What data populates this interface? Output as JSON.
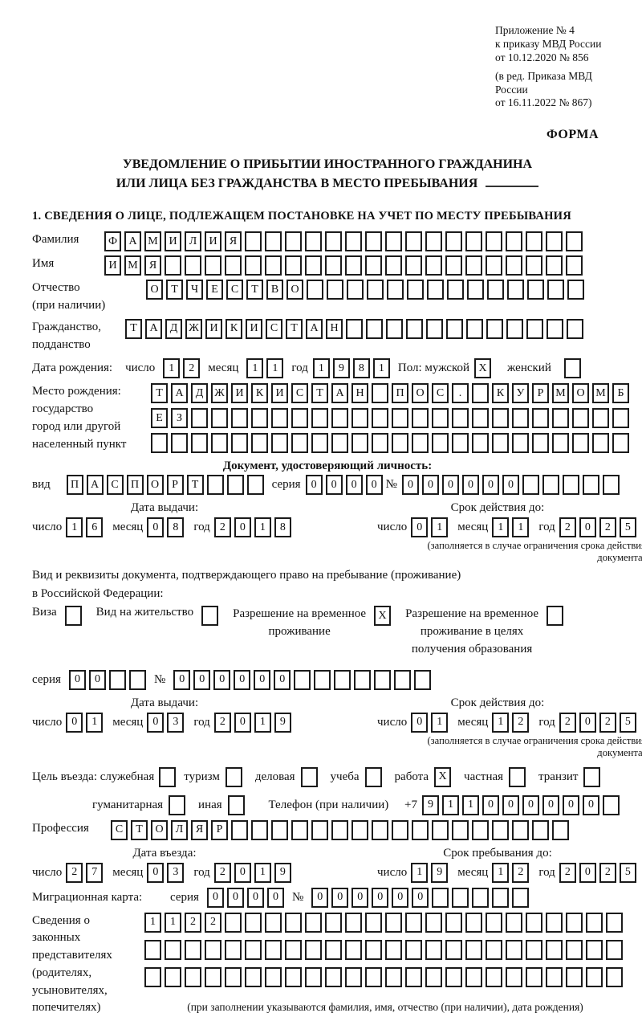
{
  "header": {
    "appendix": [
      "Приложение № 4",
      "к приказу МВД России",
      "от 10.12.2020 № 856"
    ],
    "revision": [
      "(в ред. Приказа МВД России",
      "от 16.11.2022 № 867)"
    ],
    "form_label": "ФОРМА"
  },
  "title": {
    "line1": "УВЕДОМЛЕНИЕ О ПРИБЫТИИ ИНОСТРАННОГО ГРАЖДАНИНА",
    "line2": "ИЛИ ЛИЦА БЕЗ ГРАЖДАНСТВА В МЕСТО ПРЕБЫВАНИЯ"
  },
  "section1_heading": "1. СВЕДЕНИЯ О ЛИЦЕ, ПОДЛЕЖАЩЕМ ПОСТАНОВКЕ НА УЧЕТ ПО МЕСТУ ПРЕБЫВАНИЯ",
  "labels": {
    "day": "число",
    "month": "месяц",
    "year": "год",
    "series": "серия",
    "number": "№",
    "kind": "вид",
    "sex": "Пол: мужской",
    "female": "женский",
    "phone": "Телефон (при наличии)",
    "phone_prefix": "+7"
  },
  "person": {
    "surname": {
      "label": "Фамилия",
      "boxes": {
        "chars": "ФАМИЛИЯ",
        "len": 24
      }
    },
    "firstname": {
      "label": "Имя",
      "boxes": {
        "chars": "ИМЯ",
        "len": 24
      }
    },
    "patronymic": {
      "label1": "Отчество",
      "label2": "(при наличии)",
      "boxes": {
        "chars": "ОТЧЕСТВО",
        "len": 22
      }
    },
    "citizenship": {
      "label1": "Гражданство,",
      "label2": "подданство",
      "boxes": {
        "chars": "ТАДЖИКИСТАН",
        "len": 23
      }
    },
    "birth_date": {
      "label": "Дата рождения:",
      "day": "12",
      "month": "11",
      "year": "1981"
    },
    "sex": {
      "male_mark": "X",
      "female_mark": ""
    },
    "birth_place": {
      "label1": "Место рождения:",
      "label2": "государство",
      "label3": "город или другой",
      "label4": "населенный пункт",
      "row1": {
        "chars": "ТАДЖИКИСТАН ПОС. КУРМОМБ",
        "len": 24
      },
      "row2": {
        "chars": "ЕЗ",
        "len": 24
      },
      "row3": {
        "chars": "",
        "len": 24
      }
    }
  },
  "id_document": {
    "heading": "Документ, удостоверяющий личность:",
    "kind_boxes": {
      "chars": "ПАСПОРТ",
      "len": 10
    },
    "series_boxes": {
      "chars": "0000",
      "len": 4
    },
    "number_boxes": {
      "chars": "000000",
      "len": 11
    },
    "issue": {
      "title": "Дата выдачи:",
      "day": "16",
      "month": "08",
      "year": "2018"
    },
    "expiry": {
      "title": "Срок действия до:",
      "day": "01",
      "month": "11",
      "year": "2025"
    },
    "expiry_note": "(заполняется в случае ограничения срока действия документа)"
  },
  "stay_document": {
    "intro1": "Вид и реквизиты документа, подтверждающего право на пребывание (проживание)",
    "intro2": "в Российской Федерации:",
    "visa": {
      "label": "Виза",
      "mark": ""
    },
    "residence": {
      "label": "Вид на жительство",
      "mark": ""
    },
    "temp_residence": {
      "line1": "Разрешение на временное",
      "line2": "проживание",
      "mark": "X"
    },
    "temp_residence_edu": {
      "line1": "Разрешение на временное",
      "line2": "проживание в целях",
      "line3": "получения образования",
      "mark": ""
    },
    "series_boxes": {
      "chars": "00",
      "len": 4
    },
    "number_boxes": {
      "chars": "000000",
      "len": 13
    },
    "issue": {
      "title": "Дата выдачи:",
      "day": "01",
      "month": "03",
      "year": "2019"
    },
    "expiry": {
      "title": "Срок действия до:",
      "day": "01",
      "month": "12",
      "year": "2025"
    },
    "expiry_note": "(заполняется в случае ограничения срока действия документа)"
  },
  "visit": {
    "purpose_label": "Цель въезда: служебная",
    "purposes": [
      {
        "label": "служебная",
        "mark": ""
      },
      {
        "label": "туризм",
        "mark": ""
      },
      {
        "label": "деловая",
        "mark": ""
      },
      {
        "label": "учеба",
        "mark": ""
      },
      {
        "label": "работа",
        "mark": "X"
      },
      {
        "label": "частная",
        "mark": ""
      },
      {
        "label": "транзит",
        "mark": ""
      }
    ],
    "purposes2": [
      {
        "label": "гуманитарная",
        "mark": ""
      },
      {
        "label": "иная",
        "mark": ""
      }
    ],
    "phone_boxes": {
      "chars": "911000000",
      "len": 10
    },
    "profession": {
      "label": "Профессия",
      "boxes": {
        "chars": "СТОЛЯР",
        "len": 23
      }
    },
    "entry": {
      "title": "Дата въезда:",
      "day": "27",
      "month": "03",
      "year": "2019"
    },
    "stay_until": {
      "title": "Срок пребывания до:",
      "day": "19",
      "month": "12",
      "year": "2025"
    }
  },
  "migration_card": {
    "label": "Миграционная карта:",
    "series_boxes": {
      "chars": "0000",
      "len": 4
    },
    "number_boxes": {
      "chars": "000000",
      "len": 11
    }
  },
  "representatives": {
    "label1": "Сведения о",
    "label2": "законных",
    "label3": "представителях",
    "label4": "(родителях,",
    "label5": "усыновителях,",
    "label6": "попечителях)",
    "row1": {
      "chars": "1122",
      "len": 24
    },
    "row2": {
      "chars": "",
      "len": 24
    },
    "row3": {
      "chars": "",
      "len": 24
    },
    "note": "(при заполнении указываются фамилия, имя, отчество (при наличии), дата рождения)"
  }
}
